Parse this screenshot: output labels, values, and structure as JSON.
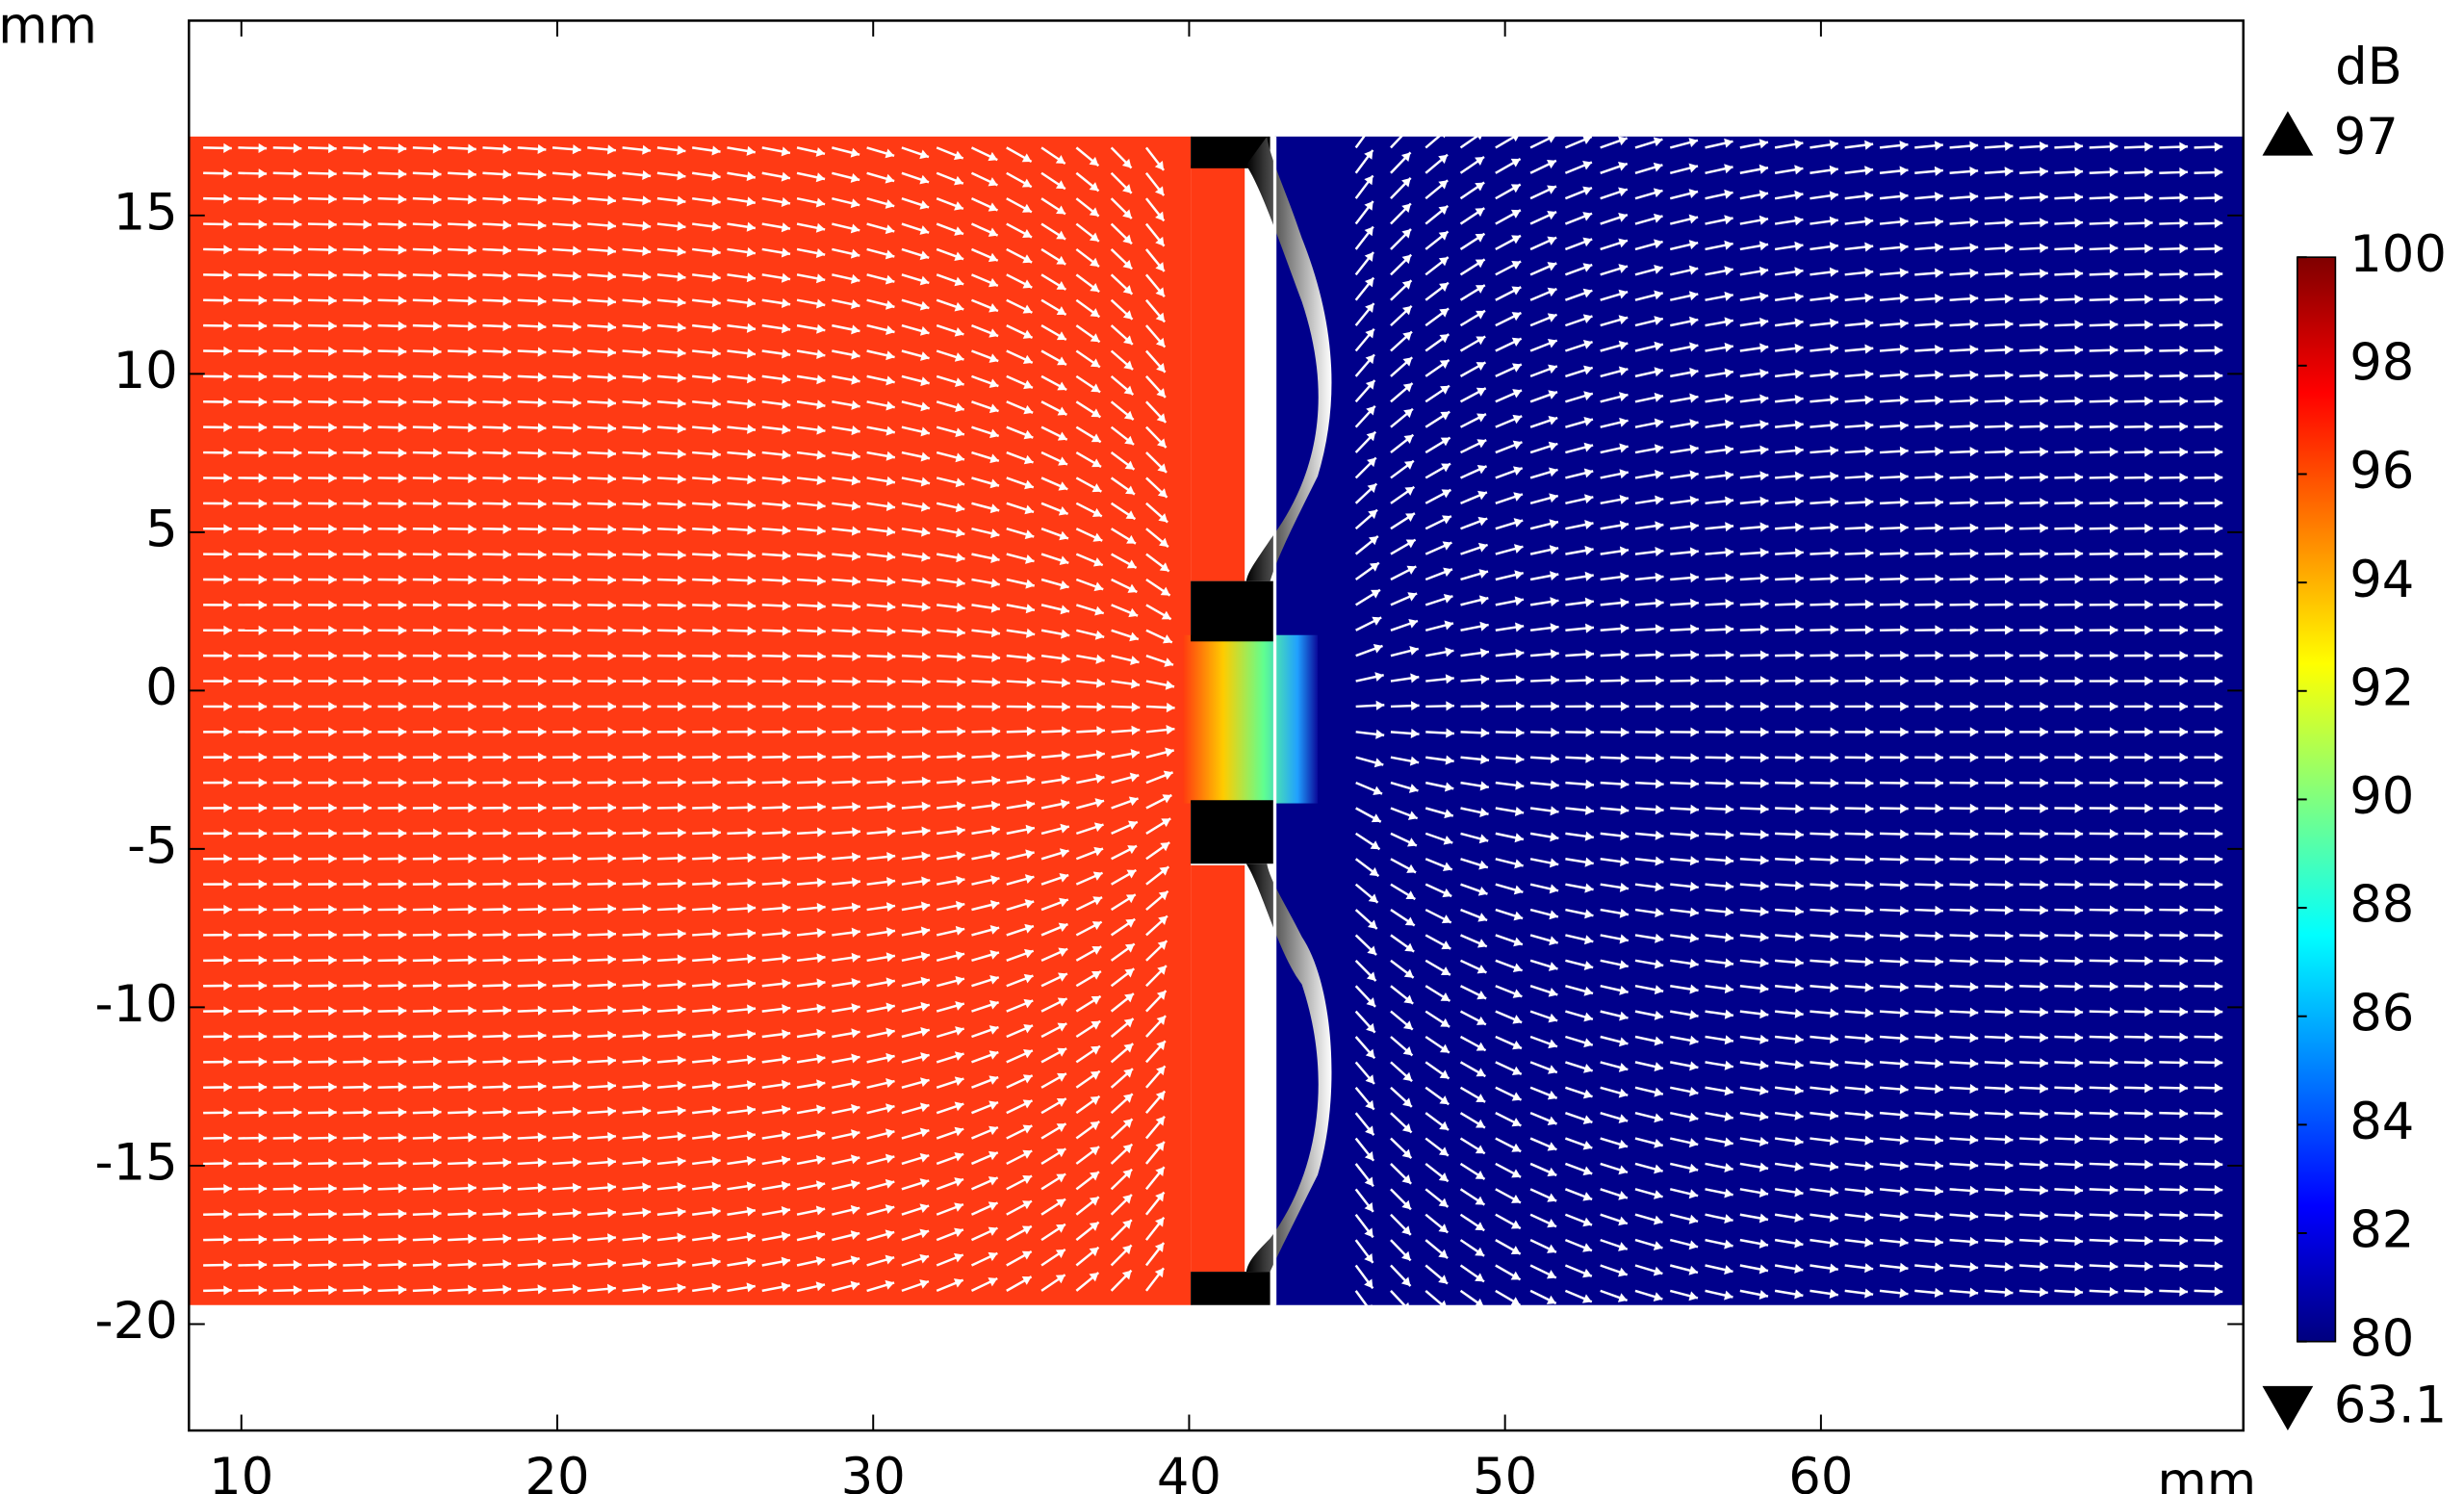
{
  "chart_data": {
    "type": "heatmap",
    "x_unit": "mm",
    "y_unit": "mm",
    "xlim": [
      8.34,
      73.37
    ],
    "ylim": [
      -23.36,
      21.15
    ],
    "xticks": [
      10,
      20,
      30,
      40,
      50,
      60
    ],
    "yticks": [
      -20,
      -15,
      -10,
      -5,
      0,
      5,
      10,
      15
    ],
    "colorbar": {
      "unit": "dB",
      "range": [
        80,
        100
      ],
      "ticks": [
        80,
        82,
        84,
        86,
        88,
        90,
        92,
        94,
        96,
        98,
        100
      ],
      "max": 97,
      "min": 63.1
    }
  }
}
